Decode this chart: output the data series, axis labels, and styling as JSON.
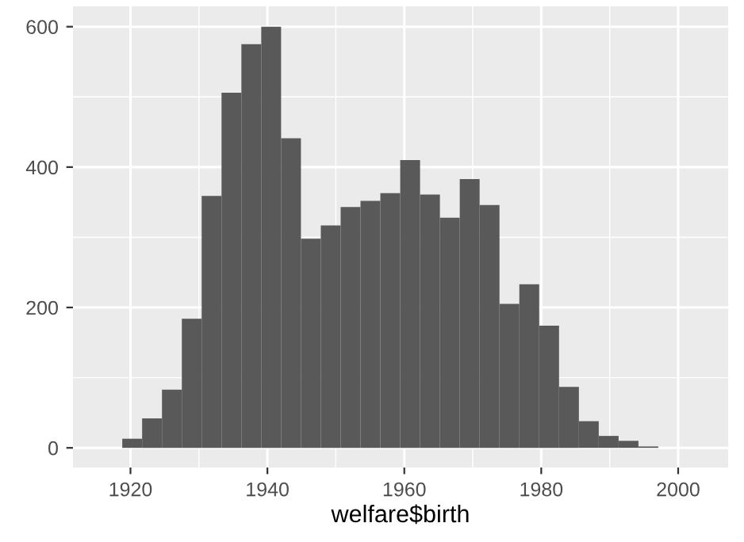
{
  "chart_data": {
    "type": "histogram",
    "xlabel": "welfare$birth",
    "bins": [
      1918.8,
      1921.7,
      1924.6,
      1927.5,
      1930.4,
      1933.3,
      1936.2,
      1939.1,
      1942.0,
      1944.9,
      1947.8,
      1950.7,
      1953.6,
      1956.5,
      1959.4,
      1962.3,
      1965.2,
      1968.1,
      1971.0,
      1973.9,
      1976.8,
      1979.7,
      1982.6,
      1985.5,
      1988.4,
      1991.3,
      1994.2,
      1997.1
    ],
    "values": [
      13,
      42,
      83,
      184,
      359,
      506,
      575,
      600,
      441,
      298,
      317,
      343,
      352,
      363,
      410,
      361,
      328,
      383,
      346,
      205,
      233,
      174,
      87,
      38,
      17,
      10,
      2
    ],
    "color": "#595959",
    "xlim": [
      1911.6,
      2007.3
    ],
    "xticks": [
      1920,
      1940,
      1960,
      1980,
      2000
    ],
    "ylim": [
      -28,
      629
    ],
    "yticks": [
      0,
      200,
      400,
      600
    ],
    "grid": true
  }
}
